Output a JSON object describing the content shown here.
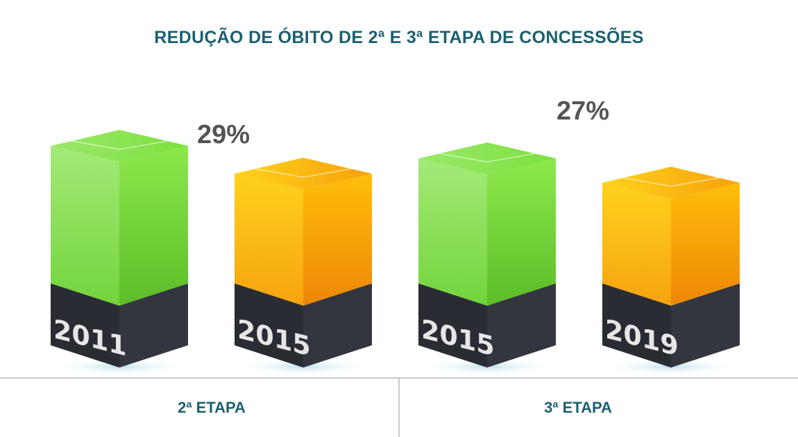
{
  "chart_data": {
    "type": "bar",
    "title": "REDUÇÃO DE ÓBITO DE 2ª E 3ª ETAPA DE CONCESSÕES",
    "groups": [
      {
        "label": "2ª ETAPA",
        "categories": [
          "2011",
          "2015"
        ],
        "reduction": "29%"
      },
      {
        "label": "3ª ETAPA",
        "categories": [
          "2015",
          "2019"
        ],
        "reduction": "27%"
      }
    ],
    "colors": {
      "before": "#7ddc3c",
      "after": "#f7a90a",
      "base": "#2c2e36",
      "title": "#1b5f70",
      "annotation": "#555555"
    },
    "grid": false
  }
}
